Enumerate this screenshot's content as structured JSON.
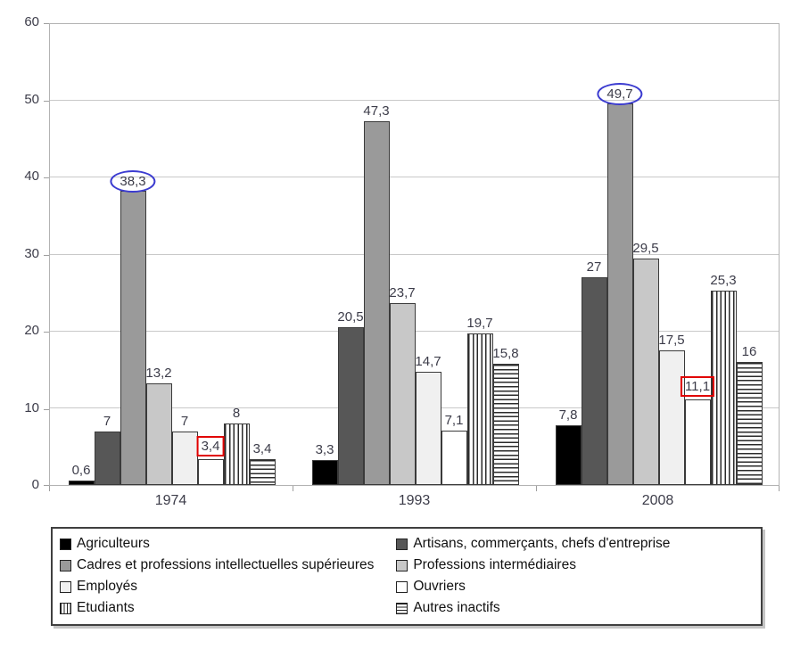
{
  "chart_data": {
    "type": "bar",
    "title": "",
    "xlabel": "",
    "ylabel": "",
    "ylim": [
      0,
      60
    ],
    "yticks": [
      0,
      10,
      20,
      30,
      40,
      50,
      60
    ],
    "grid": true,
    "legend_position": "bottom",
    "categories": [
      "1974",
      "1993",
      "2008"
    ],
    "series": [
      {
        "name": "Agriculteurs",
        "slug": "agriculteurs",
        "fill": "#000000",
        "pattern": "solid",
        "values": [
          0.6,
          3.3,
          7.8
        ],
        "labels": [
          "0,6",
          "3,3",
          "7,8"
        ]
      },
      {
        "name": "Artisans, commerçants, chefs d'entreprise",
        "slug": "artisans-commercants-chefs-entreprise",
        "fill": "#575757",
        "pattern": "solid",
        "values": [
          7,
          20.5,
          27
        ],
        "labels": [
          "7",
          "20,5",
          "27"
        ]
      },
      {
        "name": "Cadres et professions intellectuelles supérieures",
        "slug": "cadres-professions-intellectuelles-superieures",
        "fill": "#9a9a9a",
        "pattern": "solid",
        "values": [
          38.3,
          47.3,
          49.7
        ],
        "labels": [
          "38,3",
          "47,3",
          "49,7"
        ]
      },
      {
        "name": "Professions intermédiaires",
        "slug": "professions-intermediaires",
        "fill": "#c8c8c8",
        "pattern": "solid",
        "values": [
          13.2,
          23.7,
          29.5
        ],
        "labels": [
          "13,2",
          "23,7",
          "29,5"
        ]
      },
      {
        "name": "Employés",
        "slug": "employes",
        "fill": "#f0f0f0",
        "pattern": "solid",
        "values": [
          7,
          14.7,
          17.5
        ],
        "labels": [
          "7",
          "14,7",
          "17,5"
        ]
      },
      {
        "name": "Ouvriers",
        "slug": "ouvriers",
        "fill": "#ffffff",
        "pattern": "solid",
        "values": [
          3.4,
          7.1,
          11.1
        ],
        "labels": [
          "3,4",
          "7,1",
          "11,1"
        ]
      },
      {
        "name": "Etudiants",
        "slug": "etudiants",
        "fill": "#ffffff",
        "pattern": "vertical-stripes",
        "values": [
          8,
          19.7,
          25.3
        ],
        "labels": [
          "8",
          "19,7",
          "25,3"
        ]
      },
      {
        "name": "Autres inactifs",
        "slug": "autres-inactifs",
        "fill": "#ffffff",
        "pattern": "horizontal-stripes",
        "values": [
          3.4,
          15.8,
          16
        ],
        "labels": [
          "3,4",
          "15,8",
          "16"
        ]
      }
    ],
    "annotations": [
      {
        "shape": "ellipse",
        "color": "#3b3bd0",
        "series_index": 2,
        "category_index": 0,
        "label": "38,3"
      },
      {
        "shape": "ellipse",
        "color": "#3b3bd0",
        "series_index": 2,
        "category_index": 2,
        "label": "49,7"
      },
      {
        "shape": "rect",
        "color": "#e10000",
        "series_index": 5,
        "category_index": 0,
        "label": "3,4"
      },
      {
        "shape": "rect",
        "color": "#e10000",
        "series_index": 5,
        "category_index": 2,
        "label": "11,1"
      }
    ]
  },
  "colors": {
    "grid": "#c9c9c9",
    "plot_border": "#b3b3b3",
    "bar_border": "#3a3a3a",
    "axis_text": "#3c3c49",
    "annotation_blue": "#3b3bd0",
    "annotation_red": "#e10000",
    "legend_border": "#404040"
  }
}
